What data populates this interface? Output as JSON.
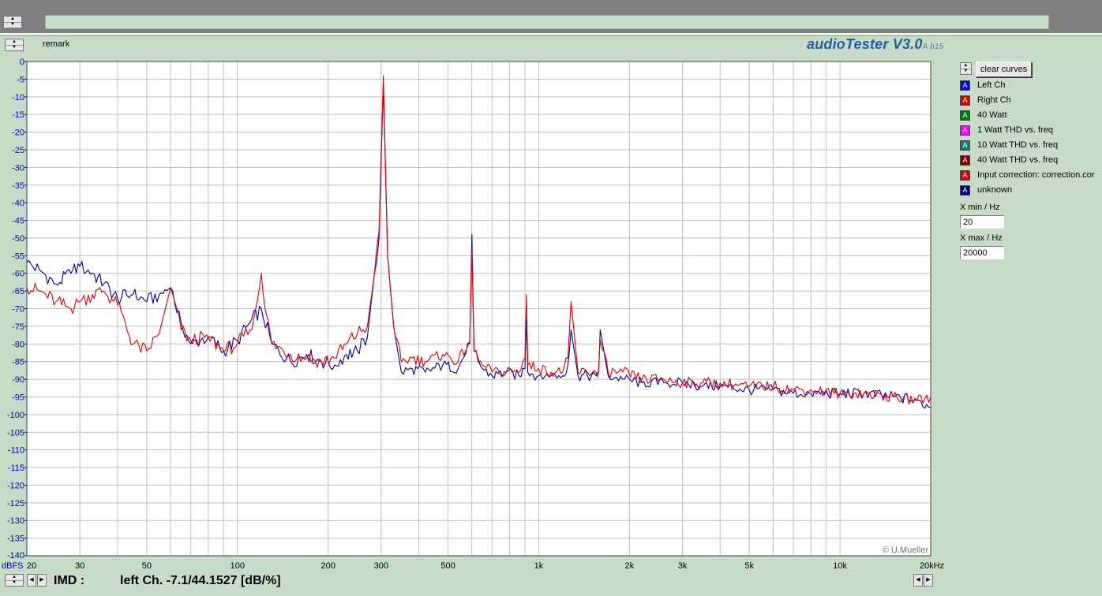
{
  "app": {
    "brand": "audioTester V3.0",
    "version_tag": "A b15",
    "remark_label": "remark"
  },
  "controls": {
    "clear_label": "clear curves",
    "xmin_label": "X min / Hz",
    "xmin_value": "20",
    "xmax_label": "X max / Hz",
    "xmax_value": "20000"
  },
  "legend": [
    {
      "label": "Left Ch",
      "color": "#0000ff"
    },
    {
      "label": "Right Ch",
      "color": "#e00000"
    },
    {
      "label": "40 Watt",
      "color": "#008000"
    },
    {
      "label": "1 Watt THD vs. freq",
      "color": "#ff00ff"
    },
    {
      "label": "10 Watt THD vs. freq",
      "color": "#008080"
    },
    {
      "label": "40 Watt THD vs. freq",
      "color": "#800000"
    },
    {
      "label": "Input correction: correction.cor",
      "color": "#e00000"
    },
    {
      "label": "unknown",
      "color": "#000080"
    }
  ],
  "status": {
    "label": "IMD :",
    "value": "left Ch. -7.1/44.1527 [dB/%]"
  },
  "chart_data": {
    "type": "line",
    "title": "",
    "xlabel": "",
    "ylabel": "dBFS",
    "x_scale": "log",
    "xlim": [
      20,
      20000
    ],
    "ylim": [
      -140,
      0
    ],
    "grid": true,
    "copyright": "© U.Mueller",
    "x_tick_labels": [
      {
        "f": 20,
        "label": "20"
      },
      {
        "f": 30,
        "label": "30"
      },
      {
        "f": 50,
        "label": "50"
      },
      {
        "f": 100,
        "label": "100"
      },
      {
        "f": 200,
        "label": "200"
      },
      {
        "f": 300,
        "label": "300"
      },
      {
        "f": 500,
        "label": "500"
      },
      {
        "f": 1000,
        "label": "1k"
      },
      {
        "f": 2000,
        "label": "2k"
      },
      {
        "f": 3000,
        "label": "3k"
      },
      {
        "f": 5000,
        "label": "5k"
      },
      {
        "f": 10000,
        "label": "10k"
      },
      {
        "f": 20000,
        "label": "20kHz"
      }
    ],
    "y_ticks": [
      0,
      -5,
      -10,
      -15,
      -20,
      -25,
      -30,
      -35,
      -40,
      -45,
      -50,
      -55,
      -60,
      -65,
      -70,
      -75,
      -80,
      -85,
      -90,
      -95,
      -100,
      -105,
      -110,
      -115,
      -120,
      -125,
      -130,
      -135,
      -140
    ],
    "series": [
      {
        "name": "Left Ch",
        "color": "#0000a8",
        "x": [
          20,
          22,
          25,
          28,
          30,
          33,
          36,
          40,
          45,
          50,
          55,
          60,
          65,
          70,
          80,
          90,
          100,
          110,
          120,
          130,
          150,
          170,
          190,
          210,
          230,
          250,
          270,
          285,
          295,
          305,
          315,
          330,
          350,
          380,
          420,
          480,
          540,
          590,
          600,
          610,
          650,
          700,
          780,
          860,
          900,
          910,
          920,
          1000,
          1100,
          1200,
          1250,
          1280,
          1350,
          1450,
          1550,
          1580,
          1600,
          1700,
          1900,
          2200,
          2600,
          3000,
          3500,
          4000,
          5000,
          6000,
          7000,
          8000,
          10000,
          12000,
          15000,
          18000,
          20000
        ],
        "y": [
          -57,
          -59,
          -63,
          -60,
          -58,
          -60,
          -63,
          -67,
          -66,
          -68,
          -66,
          -64,
          -74,
          -80,
          -78,
          -82,
          -79,
          -74,
          -70,
          -80,
          -85,
          -83,
          -85,
          -86,
          -83,
          -82,
          -78,
          -60,
          -50,
          -6,
          -55,
          -75,
          -88,
          -87,
          -88,
          -86,
          -87,
          -80,
          -49,
          -82,
          -87,
          -89,
          -88,
          -89,
          -87,
          -73,
          -88,
          -89,
          -89,
          -89,
          -86,
          -76,
          -89,
          -89,
          -89,
          -88,
          -76,
          -89,
          -90,
          -91,
          -91,
          -91,
          -92,
          -92,
          -93,
          -93,
          -94,
          -94,
          -94,
          -94,
          -95,
          -96,
          -98
        ]
      },
      {
        "name": "Right Ch",
        "color": "#e00000",
        "x": [
          20,
          22,
          25,
          28,
          30,
          33,
          36,
          40,
          45,
          50,
          55,
          60,
          65,
          70,
          80,
          90,
          100,
          110,
          115,
          120,
          125,
          130,
          150,
          170,
          190,
          210,
          230,
          250,
          270,
          285,
          295,
          305,
          315,
          330,
          350,
          380,
          420,
          480,
          540,
          590,
          600,
          610,
          650,
          700,
          780,
          860,
          900,
          910,
          920,
          1000,
          1100,
          1200,
          1250,
          1280,
          1350,
          1450,
          1550,
          1580,
          1600,
          1700,
          1900,
          2200,
          2600,
          3000,
          3500,
          4000,
          5000,
          6000,
          7000,
          8000,
          10000,
          12000,
          15000,
          18000,
          20000
        ],
        "y": [
          -64,
          -65,
          -68,
          -70,
          -68,
          -66,
          -65,
          -69,
          -80,
          -82,
          -77,
          -64,
          -76,
          -79,
          -78,
          -82,
          -80,
          -76,
          -70,
          -60,
          -72,
          -80,
          -83,
          -84,
          -85,
          -84,
          -80,
          -77,
          -75,
          -60,
          -48,
          -4,
          -55,
          -75,
          -85,
          -84,
          -85,
          -83,
          -85,
          -79,
          -53,
          -82,
          -86,
          -88,
          -88,
          -88,
          -84,
          -66,
          -86,
          -87,
          -88,
          -88,
          -84,
          -68,
          -88,
          -88,
          -88,
          -88,
          -79,
          -88,
          -88,
          -90,
          -90,
          -91,
          -91,
          -91,
          -92,
          -92,
          -93,
          -93,
          -94,
          -94,
          -95,
          -96,
          -95
        ]
      }
    ]
  }
}
